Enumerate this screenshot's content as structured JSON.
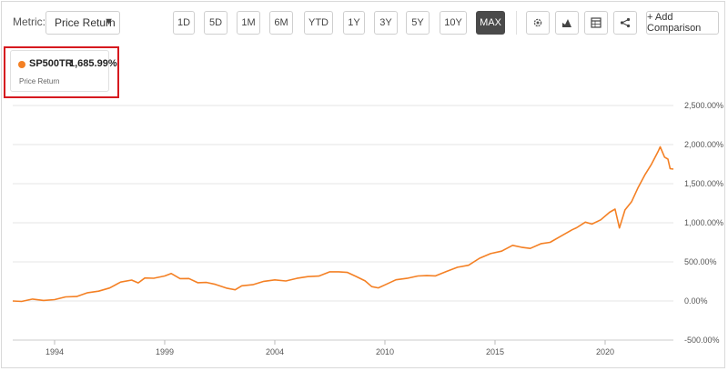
{
  "toolbar": {
    "metric_label": "Metric:",
    "metric_value": "Price Return",
    "ranges": [
      {
        "label": "1D",
        "active": false
      },
      {
        "label": "5D",
        "active": false
      },
      {
        "label": "1M",
        "active": false
      },
      {
        "label": "6M",
        "active": false
      },
      {
        "label": "YTD",
        "active": false
      },
      {
        "label": "1Y",
        "active": false
      },
      {
        "label": "3Y",
        "active": false
      },
      {
        "label": "5Y",
        "active": false
      },
      {
        "label": "10Y",
        "active": false
      },
      {
        "label": "MAX",
        "active": true
      }
    ],
    "icons": [
      "gear-icon",
      "chart-type-icon",
      "table-icon",
      "share-icon"
    ],
    "add_comparison": "+ Add Comparison"
  },
  "legend": {
    "symbol": "SP500TR",
    "value": "1,685.99%",
    "subtitle": "Price Return",
    "color": "#f48024"
  },
  "chart_data": {
    "type": "line",
    "title": "",
    "xlabel": "",
    "ylabel": "",
    "x_ticks": [
      "1994",
      "1999",
      "2004",
      "2010",
      "2015",
      "2020"
    ],
    "x_tick_years": [
      1994.5,
      1999.5,
      2004.5,
      2009.5,
      2014.5,
      2019.5
    ],
    "y_ticks": [
      "2,500.00%",
      "2,000.00%",
      "1,500.00%",
      "1,000.00%",
      "500.00%",
      "0.00%",
      "-500.00%"
    ],
    "y_tick_values": [
      2500,
      2000,
      1500,
      1000,
      500,
      0,
      -500
    ],
    "ylim": [
      -500,
      2500
    ],
    "xlim": [
      1992.6,
      2022.6
    ],
    "grid": "horizontal",
    "series": [
      {
        "color": "#f48024",
        "x": [
          1992.6,
          1993.0,
          1993.5,
          1994.0,
          1994.5,
          1995.0,
          1995.5,
          1996.0,
          1996.5,
          1997.0,
          1997.5,
          1998.0,
          1998.3,
          1998.6,
          1999.0,
          1999.5,
          1999.8,
          2000.2,
          2000.6,
          2001.0,
          2001.4,
          2001.8,
          2002.3,
          2002.7,
          2003.0,
          2003.5,
          2004.0,
          2004.5,
          2005.0,
          2005.5,
          2006.0,
          2006.5,
          2007.0,
          2007.4,
          2007.8,
          2008.2,
          2008.6,
          2008.9,
          2009.2,
          2009.5,
          2010.0,
          2010.5,
          2011.0,
          2011.4,
          2011.8,
          2012.3,
          2012.8,
          2013.3,
          2013.8,
          2014.3,
          2014.8,
          2015.3,
          2015.7,
          2016.1,
          2016.6,
          2017.0,
          2017.5,
          2018.0,
          2018.2,
          2018.6,
          2018.9,
          2019.3,
          2019.7,
          2019.95,
          2020.15,
          2020.4,
          2020.7,
          2021.0,
          2021.3,
          2021.6,
          2021.9,
          2022.0,
          2022.2,
          2022.35,
          2022.45,
          2022.6
        ],
        "y": [
          0,
          5,
          10,
          15,
          20,
          40,
          70,
          100,
          120,
          180,
          230,
          270,
          240,
          280,
          300,
          320,
          340,
          300,
          280,
          230,
          250,
          200,
          170,
          150,
          180,
          220,
          250,
          260,
          270,
          280,
          310,
          330,
          360,
          380,
          370,
          300,
          270,
          180,
          160,
          220,
          260,
          290,
          330,
          310,
          330,
          380,
          420,
          470,
          540,
          600,
          650,
          700,
          690,
          680,
          720,
          760,
          830,
          900,
          950,
          1000,
          980,
          1050,
          1120,
          1180,
          940,
          1150,
          1280,
          1450,
          1600,
          1760,
          1900,
          1970,
          1850,
          1800,
          1700,
          1686
        ]
      }
    ]
  }
}
